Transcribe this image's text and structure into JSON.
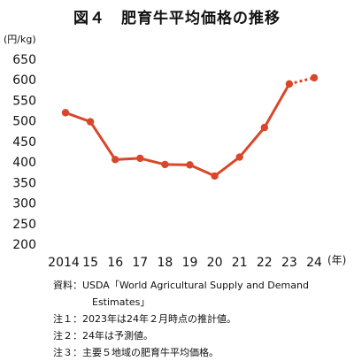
{
  "title": "図４　肥育牛平均価格の推移",
  "y_unit": "(円/kg)",
  "x_unit": "(年)",
  "notes": [
    "資料：USDA「World Agricultural Supply and Demand",
    "Estimates」",
    "注１：2023年は24年２月時点の推計値。",
    "注２：24年は予測値。",
    "注３：主要５地域の肥育牛平均価格。"
  ],
  "chart_data": {
    "type": "line",
    "title": "図４　肥育牛平均価格の推移",
    "xlabel": "(年)",
    "ylabel": "(円/kg)",
    "categories": [
      "2014",
      "15",
      "16",
      "17",
      "18",
      "19",
      "20",
      "21",
      "22",
      "23",
      "24"
    ],
    "series": [
      {
        "values": [
          520,
          498,
          406,
          409,
          394,
          393,
          366,
          412,
          484,
          590,
          605
        ],
        "color": "#d9472a",
        "dotted_last_segment": true
      }
    ],
    "ylim": [
      200,
      650
    ],
    "yticks": [
      650,
      600,
      550,
      500,
      450,
      400,
      350,
      300,
      250,
      200
    ],
    "grid": false,
    "legend": "none"
  }
}
